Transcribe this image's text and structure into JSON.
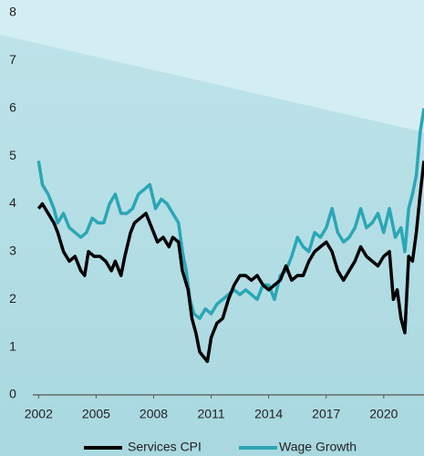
{
  "chart_data": {
    "type": "line",
    "xlim": [
      2001.7,
      2022.1
    ],
    "xticks": [
      2002,
      2005,
      2008,
      2011,
      2014,
      2017,
      2020
    ],
    "ylim": [
      0,
      8
    ],
    "yticks": [
      0,
      1,
      2,
      3,
      4,
      5,
      6,
      7,
      8
    ],
    "series": [
      {
        "name": "Services CPI",
        "color": "#000000",
        "x": [
          2002.0,
          2002.2,
          2002.5,
          2002.8,
          2003.0,
          2003.3,
          2003.6,
          2003.9,
          2004.2,
          2004.4,
          2004.6,
          2004.9,
          2005.2,
          2005.5,
          2005.8,
          2006.0,
          2006.3,
          2006.5,
          2006.8,
          2007.0,
          2007.3,
          2007.6,
          2007.9,
          2008.2,
          2008.5,
          2008.8,
          2009.0,
          2009.3,
          2009.5,
          2009.8,
          2010.0,
          2010.2,
          2010.4,
          2010.6,
          2010.8,
          2011.0,
          2011.3,
          2011.6,
          2011.9,
          2012.2,
          2012.5,
          2012.8,
          2013.1,
          2013.4,
          2013.7,
          2014.0,
          2014.3,
          2014.6,
          2014.9,
          2015.2,
          2015.5,
          2015.8,
          2016.1,
          2016.4,
          2016.7,
          2017.0,
          2017.3,
          2017.6,
          2017.9,
          2018.2,
          2018.5,
          2018.8,
          2019.1,
          2019.4,
          2019.7,
          2020.0,
          2020.3,
          2020.5,
          2020.7,
          2020.9,
          2021.1,
          2021.3,
          2021.5,
          2021.7,
          2021.9,
          2022.1
        ],
        "values": [
          3.9,
          4.0,
          3.8,
          3.6,
          3.4,
          3.0,
          2.8,
          2.9,
          2.6,
          2.5,
          3.0,
          2.9,
          2.9,
          2.8,
          2.6,
          2.8,
          2.5,
          2.9,
          3.4,
          3.6,
          3.7,
          3.8,
          3.5,
          3.2,
          3.3,
          3.1,
          3.3,
          3.2,
          2.6,
          2.2,
          1.6,
          1.3,
          0.9,
          0.8,
          0.7,
          1.2,
          1.5,
          1.6,
          2.0,
          2.3,
          2.5,
          2.5,
          2.4,
          2.5,
          2.3,
          2.2,
          2.3,
          2.4,
          2.7,
          2.4,
          2.5,
          2.5,
          2.8,
          3.0,
          3.1,
          3.2,
          3.0,
          2.6,
          2.4,
          2.6,
          2.8,
          3.1,
          2.9,
          2.8,
          2.7,
          2.9,
          3.0,
          2.0,
          2.2,
          1.6,
          1.3,
          2.9,
          2.8,
          3.4,
          4.2,
          4.9
        ]
      },
      {
        "name": "Wage Growth",
        "color": "#2ba6b5",
        "x": [
          2002.0,
          2002.2,
          2002.5,
          2002.8,
          2003.0,
          2003.3,
          2003.6,
          2003.9,
          2004.2,
          2004.5,
          2004.8,
          2005.1,
          2005.4,
          2005.7,
          2006.0,
          2006.3,
          2006.6,
          2006.9,
          2007.2,
          2007.5,
          2007.8,
          2008.1,
          2008.4,
          2008.7,
          2009.0,
          2009.3,
          2009.5,
          2009.7,
          2009.9,
          2010.1,
          2010.4,
          2010.7,
          2011.0,
          2011.3,
          2011.6,
          2011.9,
          2012.2,
          2012.5,
          2012.8,
          2013.1,
          2013.4,
          2013.7,
          2014.0,
          2014.3,
          2014.6,
          2014.9,
          2015.2,
          2015.5,
          2015.8,
          2016.1,
          2016.4,
          2016.7,
          2017.0,
          2017.3,
          2017.6,
          2017.9,
          2018.2,
          2018.5,
          2018.8,
          2019.1,
          2019.4,
          2019.7,
          2020.0,
          2020.3,
          2020.6,
          2020.9,
          2021.1,
          2021.3,
          2021.5,
          2021.7,
          2021.9,
          2022.1
        ],
        "values": [
          4.9,
          4.4,
          4.2,
          3.9,
          3.6,
          3.8,
          3.5,
          3.4,
          3.3,
          3.4,
          3.7,
          3.6,
          3.6,
          4.0,
          4.2,
          3.8,
          3.8,
          3.9,
          4.2,
          4.3,
          4.4,
          3.9,
          4.1,
          4.0,
          3.8,
          3.6,
          3.0,
          2.6,
          2.0,
          1.7,
          1.6,
          1.8,
          1.7,
          1.9,
          2.0,
          2.1,
          2.2,
          2.1,
          2.2,
          2.1,
          2.0,
          2.3,
          2.3,
          2.0,
          2.5,
          2.6,
          2.9,
          3.3,
          3.1,
          3.0,
          3.4,
          3.3,
          3.5,
          3.9,
          3.4,
          3.2,
          3.3,
          3.5,
          3.9,
          3.5,
          3.6,
          3.8,
          3.4,
          3.9,
          3.3,
          3.5,
          3.0,
          3.9,
          4.2,
          4.6,
          5.5,
          6.0
        ]
      }
    ]
  }
}
